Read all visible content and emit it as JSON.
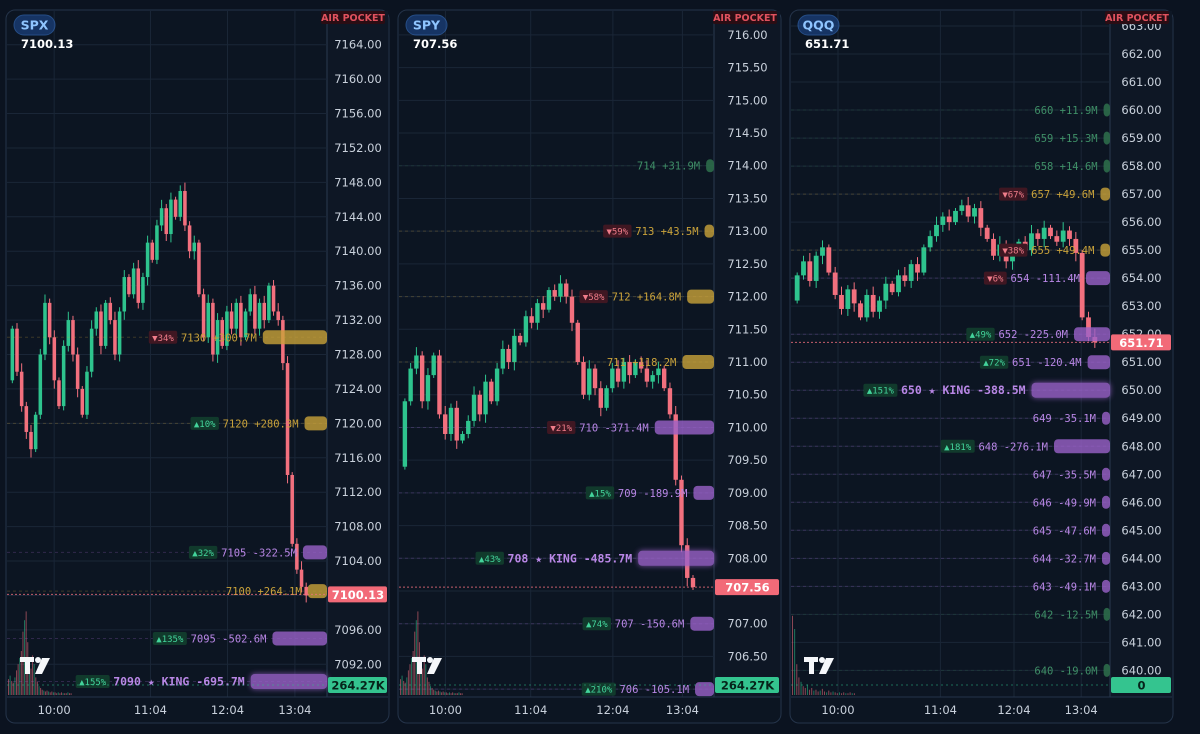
{
  "colors": {
    "bg": "#0b1320",
    "panel": "#0c1522",
    "axis": "#0e1725",
    "grid": "#1a2637",
    "up": "#2ec48e",
    "down": "#f2707e",
    "gold": "#c9a23a",
    "purple": "#9a62c9",
    "purpleText": "#b987e6",
    "greenText": "#3f8f67",
    "pillBg": "#1f4f9a",
    "pillText": "#8fc5ff",
    "alert": "#e0525e"
  },
  "chart_data": [
    {
      "type": "candlestick",
      "ticker": "SPX",
      "price": "7100.13",
      "price_value": 7100.13,
      "alert": "AIR POCKET",
      "ylim": [
        7088.2,
        7167.8
      ],
      "yticks": [
        7164,
        7160,
        7156,
        7152,
        7148,
        7144,
        7140,
        7136,
        7132,
        7128,
        7124,
        7120,
        7116,
        7112,
        7108,
        7104,
        7100,
        7096,
        7092
      ],
      "xticks": [
        {
          "label": "10:00",
          "t": 0.15
        },
        {
          "label": "11:04",
          "t": 0.45
        },
        {
          "label": "12:04",
          "t": 0.69
        },
        {
          "label": "13:04",
          "t": 0.9
        }
      ],
      "volume_label": "264.27K",
      "volume_value": 264.27,
      "candles": {
        "open": 7125,
        "closes": [
          7131,
          7126,
          7122,
          7119,
          7117,
          7121,
          7128,
          7134,
          7130,
          7125,
          7122,
          7129,
          7132,
          7128,
          7124,
          7121,
          7126,
          7131,
          7133,
          7129,
          7134,
          7132,
          7128,
          7133,
          7137,
          7135,
          7138,
          7134,
          7137,
          7141,
          7139,
          7143,
          7145,
          7142,
          7146,
          7144,
          7147,
          7143,
          7140,
          7141,
          7135,
          7130,
          7134,
          7128,
          7132,
          7129,
          7133,
          7131,
          7134,
          7130,
          7133,
          7135,
          7131,
          7134,
          7132,
          7136,
          7133,
          7132,
          7127,
          7114,
          7106,
          7103,
          7101,
          7100
        ]
      },
      "volumes": [
        0.18,
        0.22,
        0.16,
        0.14,
        0.2,
        0.28,
        0.35,
        0.42,
        0.5,
        0.72,
        0.85,
        0.95,
        0.6,
        0.4,
        0.3,
        0.45,
        0.35,
        0.2,
        0.15,
        0.1,
        0.08,
        0.06,
        0.05,
        0.04,
        0.05,
        0.04,
        0.03,
        0.04,
        0.03,
        0.03,
        0.02,
        0.03,
        0.02,
        0.03,
        0.02,
        0.02,
        0.02,
        0.03,
        0.02,
        0.02
      ],
      "levels": [
        {
          "badge": "▼34%",
          "label": "7130 +300.7M",
          "value": 7130,
          "kind": "gold",
          "bar": 80,
          "size": "n"
        },
        {
          "badge": "▲10%",
          "label": "7120 +280.3M",
          "value": 7120,
          "kind": "gold",
          "bar": 28,
          "size": "n"
        },
        {
          "badge": "▲32%",
          "label": "7105 -322.5M",
          "value": 7105,
          "kind": "purple",
          "bar": 30,
          "size": "n"
        },
        {
          "badge": "",
          "label": "7100 +264.1M",
          "value": 7100.5,
          "kind": "gold",
          "bar": 24,
          "size": "n"
        },
        {
          "badge": "▲135%",
          "label": "7095 -502.6M",
          "value": 7095,
          "kind": "purple",
          "bar": 68,
          "size": "n"
        },
        {
          "badge": "▲155%",
          "label": "7090 ★ KING -695.7M",
          "value": 7090,
          "kind": "purple",
          "bar": 95,
          "size": "k"
        }
      ]
    },
    {
      "type": "candlestick",
      "ticker": "SPY",
      "price": "707.56",
      "price_value": 707.56,
      "alert": "AIR POCKET",
      "ylim": [
        705.88,
        716.35
      ],
      "yticks": [
        716,
        715.5,
        715,
        714.5,
        714,
        713.5,
        713,
        712.5,
        712,
        711.5,
        711,
        710.5,
        710,
        709.5,
        709,
        708.5,
        708,
        707.5,
        707,
        706.5,
        706
      ],
      "xticks": [
        {
          "label": "10:00",
          "t": 0.15
        },
        {
          "label": "11:04",
          "t": 0.42
        },
        {
          "label": "12:04",
          "t": 0.68
        },
        {
          "label": "13:04",
          "t": 0.9
        }
      ],
      "volume_label": "264.27K",
      "volume_value": 264.27,
      "candles": {
        "open": 709.4,
        "closes": [
          710.4,
          710.9,
          711.1,
          710.4,
          710.8,
          711.1,
          710.2,
          709.9,
          710.3,
          709.8,
          709.9,
          710.1,
          710.5,
          710.2,
          710.7,
          710.4,
          710.9,
          711.2,
          711.0,
          711.4,
          711.3,
          711.7,
          711.6,
          711.9,
          711.8,
          712.1,
          712.0,
          712.2,
          712.0,
          711.6,
          711.0,
          710.5,
          710.9,
          710.6,
          710.3,
          710.6,
          710.9,
          710.7,
          711.0,
          710.8,
          711.0,
          710.9,
          710.7,
          710.8,
          710.9,
          710.6,
          710.2,
          709.2,
          708.2,
          707.7,
          707.56
        ]
      },
      "volumes": [
        0.18,
        0.22,
        0.16,
        0.14,
        0.2,
        0.28,
        0.35,
        0.42,
        0.5,
        0.72,
        0.85,
        0.95,
        0.6,
        0.4,
        0.3,
        0.45,
        0.35,
        0.2,
        0.15,
        0.1,
        0.08,
        0.06,
        0.05,
        0.04,
        0.05,
        0.04,
        0.03,
        0.04,
        0.03,
        0.03,
        0.02,
        0.03,
        0.02,
        0.03,
        0.02,
        0.02,
        0.02,
        0.03,
        0.02,
        0.02
      ],
      "levels": [
        {
          "badge": "",
          "label": "714 +31.9M",
          "value": 714,
          "kind": "green",
          "bar": 10,
          "size": "n"
        },
        {
          "badge": "▼59%",
          "label": "713 +43.5M",
          "value": 713,
          "kind": "gold",
          "bar": 12,
          "size": "n"
        },
        {
          "badge": "▼58%",
          "label": "712 +164.8M",
          "value": 712,
          "kind": "gold",
          "bar": 34,
          "size": "n"
        },
        {
          "badge": "",
          "label": "711 +118.2M",
          "value": 711,
          "kind": "gold",
          "bar": 40,
          "size": "n"
        },
        {
          "badge": "▼21%",
          "label": "710 -371.4M",
          "value": 710,
          "kind": "purple",
          "bar": 75,
          "size": "n"
        },
        {
          "badge": "▲15%",
          "label": "709 -189.9M",
          "value": 709,
          "kind": "purple",
          "bar": 26,
          "size": "n"
        },
        {
          "badge": "▲43%",
          "label": "708 ★ KING -485.7M",
          "value": 708,
          "kind": "purple",
          "bar": 96,
          "size": "k"
        },
        {
          "badge": "▲74%",
          "label": "707 -150.6M",
          "value": 707,
          "kind": "purple",
          "bar": 30,
          "size": "n"
        },
        {
          "badge": "▲210%",
          "label": "706 -105.1M",
          "value": 706,
          "kind": "purple",
          "bar": 24,
          "size": "n"
        }
      ]
    },
    {
      "type": "candlestick",
      "ticker": "QQQ",
      "price": "651.71",
      "price_value": 651.71,
      "alert": "AIR POCKET",
      "ylim": [
        639.05,
        663.5
      ],
      "yticks": [
        663,
        662,
        661,
        660,
        659,
        658,
        657,
        656,
        655,
        654,
        653,
        652,
        651,
        650,
        649,
        648,
        647,
        646,
        645,
        644,
        643,
        642,
        641,
        640,
        639
      ],
      "xticks": [
        {
          "label": "10:00",
          "t": 0.15
        },
        {
          "label": "11:04",
          "t": 0.47
        },
        {
          "label": "12:04",
          "t": 0.7
        },
        {
          "label": "13:04",
          "t": 0.91
        }
      ],
      "volume_label": "0",
      "volume_value": 0,
      "candles": {
        "open": 653.2,
        "closes": [
          654.1,
          654.6,
          653.9,
          654.8,
          655.1,
          654.2,
          653.4,
          652.9,
          653.6,
          653.1,
          652.6,
          653.4,
          652.8,
          653.2,
          653.8,
          653.5,
          654.1,
          653.9,
          654.5,
          654.2,
          655.1,
          655.5,
          655.9,
          656.2,
          656.0,
          656.4,
          656.6,
          656.2,
          656.5,
          655.8,
          655.4,
          654.8,
          655.2,
          654.6,
          654.9,
          655.3,
          655.0,
          655.6,
          655.4,
          655.8,
          655.5,
          655.3,
          655.7,
          655.4,
          654.9,
          652.6,
          651.9,
          651.71
        ]
      },
      "volumes": [
        0.9,
        0.75,
        0.35,
        0.2,
        0.15,
        0.1,
        0.08,
        0.12,
        0.06,
        0.08,
        0.05,
        0.06,
        0.04,
        0.05,
        0.07,
        0.04,
        0.03,
        0.05,
        0.03,
        0.04,
        0.03,
        0.02,
        0.03,
        0.02,
        0.03,
        0.02,
        0.02,
        0.03,
        0.02,
        0.02
      ],
      "levels": [
        {
          "badge": "",
          "label": "660 +11.9M",
          "value": 660,
          "kind": "green",
          "bar": 8,
          "size": "n"
        },
        {
          "badge": "",
          "label": "659 +15.3M",
          "value": 659,
          "kind": "green",
          "bar": 8,
          "size": "n"
        },
        {
          "badge": "",
          "label": "658 +14.6M",
          "value": 658,
          "kind": "green",
          "bar": 8,
          "size": "n"
        },
        {
          "badge": "▼67%",
          "label": "657 +49.6M",
          "value": 657,
          "kind": "gold",
          "bar": 12,
          "size": "n"
        },
        {
          "badge": "▼38%",
          "label": "655 +49.4M",
          "value": 655,
          "kind": "gold",
          "bar": 12,
          "size": "n"
        },
        {
          "badge": "▼6%",
          "label": "654 -111.4M",
          "value": 654,
          "kind": "purple",
          "bar": 30,
          "size": "n"
        },
        {
          "badge": "▲49%",
          "label": "652 -225.0M",
          "value": 652,
          "kind": "purple",
          "bar": 45,
          "size": "n"
        },
        {
          "badge": "▲72%",
          "label": "651 -120.4M",
          "value": 651,
          "kind": "purple",
          "bar": 28,
          "size": "n"
        },
        {
          "badge": "▲151%",
          "label": "650 ★ KING -388.5M",
          "value": 650,
          "kind": "purple",
          "bar": 98,
          "size": "k"
        },
        {
          "badge": "",
          "label": "649 -35.1M",
          "value": 649,
          "kind": "purple",
          "bar": 10,
          "size": "n"
        },
        {
          "badge": "▲181%",
          "label": "648 -276.1M",
          "value": 648,
          "kind": "purple",
          "bar": 70,
          "size": "n"
        },
        {
          "badge": "",
          "label": "647 -35.5M",
          "value": 647,
          "kind": "purple",
          "bar": 10,
          "size": "n"
        },
        {
          "badge": "",
          "label": "646 -49.9M",
          "value": 646,
          "kind": "purple",
          "bar": 10,
          "size": "n"
        },
        {
          "badge": "",
          "label": "645 -47.6M",
          "value": 645,
          "kind": "purple",
          "bar": 10,
          "size": "n"
        },
        {
          "badge": "",
          "label": "644 -32.7M",
          "value": 644,
          "kind": "purple",
          "bar": 10,
          "size": "n"
        },
        {
          "badge": "",
          "label": "643 -49.1M",
          "value": 643,
          "kind": "purple",
          "bar": 10,
          "size": "n"
        },
        {
          "badge": "",
          "label": "642 -12.5M",
          "value": 642,
          "kind": "green",
          "bar": 8,
          "size": "n"
        },
        {
          "badge": "",
          "label": "640 -19.0M",
          "value": 640,
          "kind": "green",
          "bar": 8,
          "size": "n"
        }
      ]
    }
  ]
}
